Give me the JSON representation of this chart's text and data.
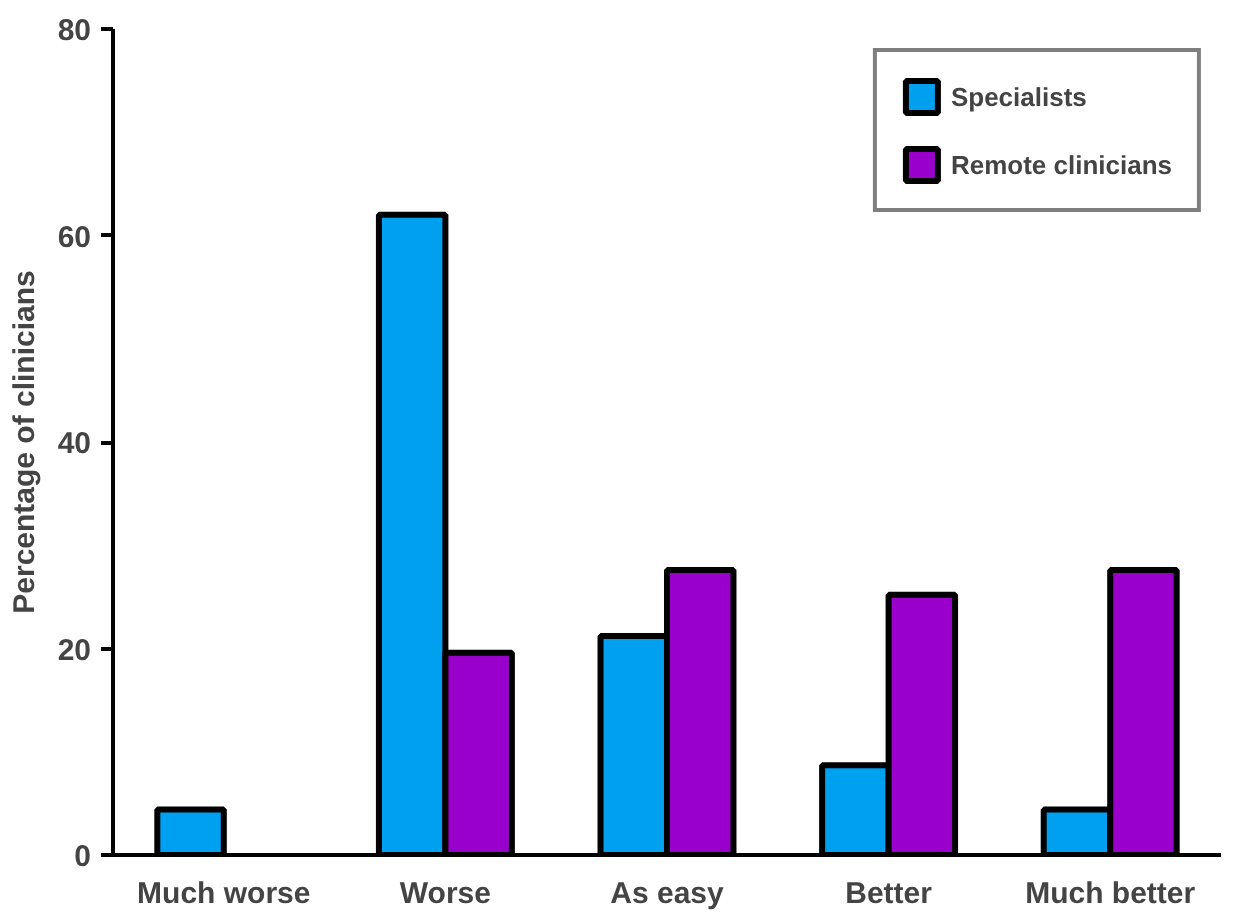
{
  "chart_data": {
    "type": "bar",
    "ylabel": "Percentage of clinicians",
    "categories": [
      "Much worse",
      "Worse",
      "As easy",
      "Better",
      "Much better"
    ],
    "series": [
      {
        "name": "Specialists",
        "color": "#00a0f0",
        "values": [
          4.4,
          62,
          21.2,
          8.7,
          4.4
        ]
      },
      {
        "name": "Remote clinicians",
        "color": "#9900cc",
        "values": [
          null,
          19.6,
          27.6,
          25.2,
          27.6
        ]
      }
    ],
    "ylim": [
      0,
      80
    ],
    "yticks": [
      0,
      20,
      40,
      60,
      80
    ],
    "grid": false,
    "legend": "top right"
  }
}
